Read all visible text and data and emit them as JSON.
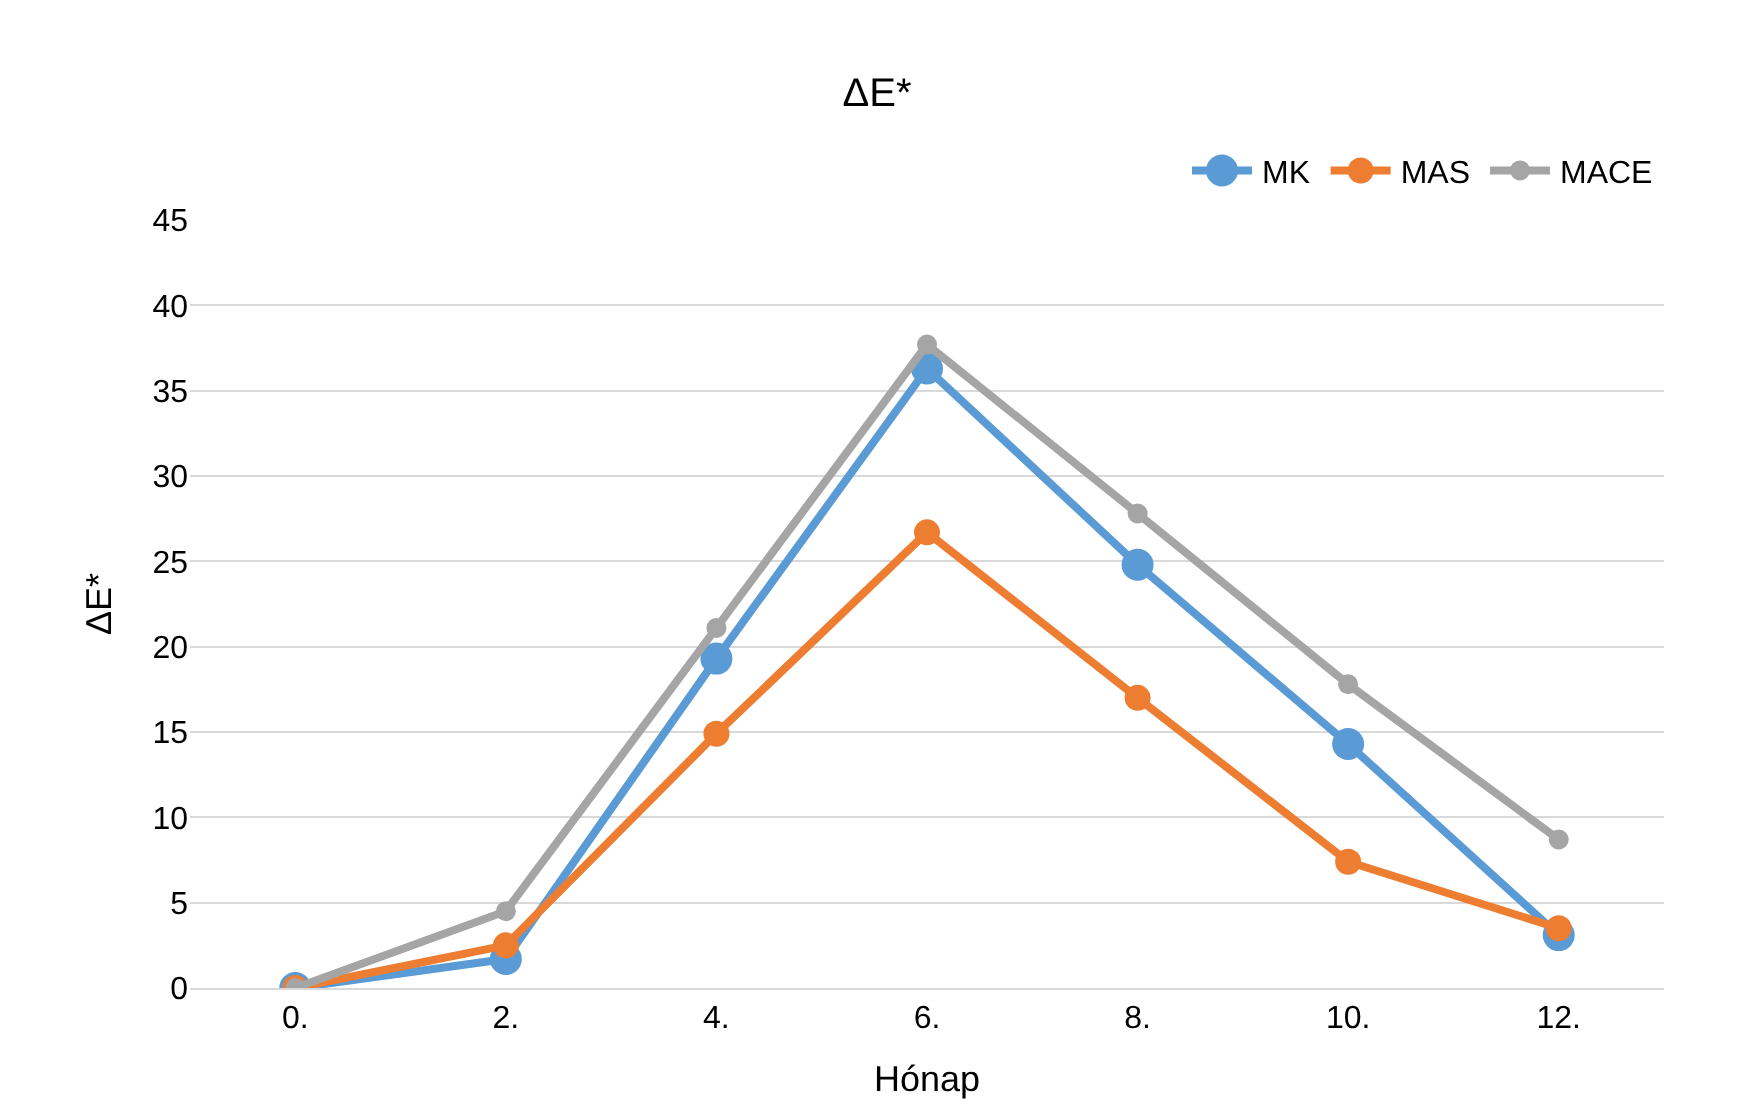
{
  "chart_data": {
    "type": "line",
    "title": "ΔE*",
    "xlabel": "Hónap",
    "ylabel": "ΔE*",
    "categories": [
      "0.",
      "2.",
      "4.",
      "6.",
      "8.",
      "10.",
      "12."
    ],
    "series": [
      {
        "name": "MK",
        "color": "#5b9bd5",
        "values": [
          0,
          1.7,
          19.3,
          36.3,
          24.8,
          14.3,
          3.1
        ]
      },
      {
        "name": "MAS",
        "color": "#ed7d31",
        "values": [
          0,
          2.5,
          14.9,
          26.7,
          17.0,
          7.4,
          3.5
        ]
      },
      {
        "name": "MACE",
        "color": "#a5a5a5",
        "values": [
          0,
          4.5,
          21.1,
          37.7,
          27.8,
          17.8,
          8.7
        ]
      }
    ],
    "ylim": [
      0,
      45
    ],
    "yticks": [
      0,
      5,
      10,
      15,
      20,
      25,
      30,
      35,
      40,
      45
    ],
    "grid": "y",
    "legend": "top right",
    "marker": "circle",
    "line_style": "solid"
  }
}
